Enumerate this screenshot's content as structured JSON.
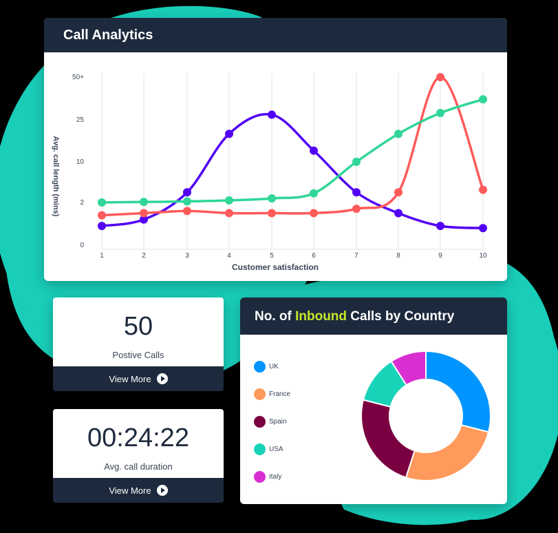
{
  "colors": {
    "teal_blob": "#19cdb9",
    "navy": "#1d2a3d",
    "highlight": "#c6e82b",
    "purple": "#5200f5",
    "red": "#ff5a5a",
    "green": "#2fd697"
  },
  "analytics_panel": {
    "title": "Call Analytics"
  },
  "chart_data": [
    {
      "type": "line",
      "title": "Call Analytics",
      "xlabel": "Customer satisfaction",
      "ylabel": "Avg. call length (mins)",
      "x": [
        1,
        2,
        3,
        4,
        5,
        6,
        7,
        8,
        9,
        10
      ],
      "y_ticks": [
        "0",
        "2",
        "10",
        "25",
        "50+"
      ],
      "y_scale": "non-linear (ticks equally spaced)",
      "grid": "vertical lines",
      "series": [
        {
          "name": "purple",
          "color": "#5200f5",
          "values": [
            0.9,
            1.2,
            4,
            20,
            28,
            14,
            4,
            1.5,
            0.9,
            0.8
          ]
        },
        {
          "name": "red",
          "color": "#ff5a5a",
          "values": [
            1.4,
            1.5,
            1.6,
            1.5,
            1.5,
            1.5,
            1.7,
            4,
            50,
            4.5
          ]
        },
        {
          "name": "green",
          "color": "#2fd697",
          "values": [
            2,
            2.1,
            2.2,
            2.4,
            2.8,
            3.8,
            10,
            20,
            29,
            37
          ]
        }
      ]
    },
    {
      "type": "pie",
      "title": "No. of Inbound Calls by Country",
      "donut": true,
      "categories": [
        "UK",
        "France",
        "Spain",
        "USA",
        "Italy"
      ],
      "values": [
        29,
        26,
        24,
        12,
        9
      ],
      "colors": [
        "#0095ff",
        "#ff9a5c",
        "#7a0041",
        "#19d3b9",
        "#d92fd2"
      ],
      "legend_position": "left"
    }
  ],
  "chart_axes": {
    "y_labels": [
      "50+",
      "25",
      "10",
      "2",
      "0"
    ],
    "x_labels": [
      "1",
      "2",
      "3",
      "4",
      "5",
      "6",
      "7",
      "8",
      "9",
      "10"
    ],
    "xlabel": "Customer satisfaction",
    "ylabel": "Avg. call length (mins)"
  },
  "stats": [
    {
      "value": "50",
      "label": "Postive Calls",
      "action": "View More"
    },
    {
      "value": "00:24:22",
      "label": "Avg. call duration",
      "action": "View More"
    }
  ],
  "country_panel": {
    "title_pre": "No. of ",
    "title_highlight": "Inbound",
    "title_post": " Calls by Country",
    "legend": [
      {
        "label": "UK",
        "color": "#0095ff"
      },
      {
        "label": "France",
        "color": "#ff9a5c"
      },
      {
        "label": "Spain",
        "color": "#7a0041"
      },
      {
        "label": "USA",
        "color": "#19d3b9"
      },
      {
        "label": "Italy",
        "color": "#d92fd2"
      }
    ]
  }
}
